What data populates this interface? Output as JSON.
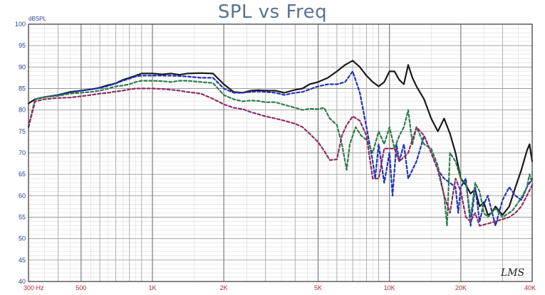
{
  "chart_data": {
    "type": "line",
    "title": "SPL vs Freq",
    "ylabel": "dBSPL",
    "xscale": "log",
    "xlim": [
      300,
      40000
    ],
    "ylim": [
      40,
      100
    ],
    "grid": true,
    "y_ticks": [
      "100",
      "95",
      "90",
      "85",
      "80",
      "75",
      "70",
      "65",
      "60",
      "55",
      "50",
      "45",
      "40"
    ],
    "x_tick_labels": [
      {
        "value": 300,
        "label": "300 Hz"
      },
      {
        "value": 500,
        "label": "500"
      },
      {
        "value": 1000,
        "label": "1K"
      },
      {
        "value": 2000,
        "label": "2K"
      },
      {
        "value": 5000,
        "label": "5K"
      },
      {
        "value": 10000,
        "label": "10K"
      },
      {
        "value": 20000,
        "label": "20K"
      },
      {
        "value": 40000,
        "label": "40K"
      }
    ],
    "logo_text": "LMS",
    "series": [
      {
        "color": "#1a1a1a",
        "dash": "solid",
        "points": [
          [
            300,
            81.5
          ],
          [
            320,
            82.5
          ],
          [
            350,
            83
          ],
          [
            400,
            83.5
          ],
          [
            450,
            84.2
          ],
          [
            500,
            84.5
          ],
          [
            550,
            84.8
          ],
          [
            600,
            85.2
          ],
          [
            650,
            85.8
          ],
          [
            700,
            86.2
          ],
          [
            750,
            87
          ],
          [
            800,
            87.5
          ],
          [
            850,
            88
          ],
          [
            900,
            88.5
          ],
          [
            1000,
            88.5
          ],
          [
            1100,
            88.3
          ],
          [
            1200,
            88.5
          ],
          [
            1300,
            88.2
          ],
          [
            1400,
            88.5
          ],
          [
            1600,
            88.6
          ],
          [
            1800,
            88.5
          ],
          [
            2000,
            86
          ],
          [
            2200,
            84.2
          ],
          [
            2400,
            84
          ],
          [
            2600,
            84.5
          ],
          [
            2800,
            84.6
          ],
          [
            3000,
            84.5
          ],
          [
            3300,
            84.5
          ],
          [
            3600,
            84
          ],
          [
            4000,
            84.7
          ],
          [
            4300,
            85
          ],
          [
            4600,
            86
          ],
          [
            5000,
            86.5
          ],
          [
            5500,
            87.5
          ],
          [
            6000,
            89
          ],
          [
            6500,
            90.5
          ],
          [
            7000,
            91.5
          ],
          [
            7500,
            90
          ],
          [
            8000,
            88
          ],
          [
            8500,
            86.5
          ],
          [
            9000,
            85.5
          ],
          [
            9500,
            86.5
          ],
          [
            10000,
            89
          ],
          [
            10500,
            89
          ],
          [
            11000,
            87
          ],
          [
            11500,
            86
          ],
          [
            12000,
            90.5
          ],
          [
            12500,
            87.5
          ],
          [
            13000,
            85.5
          ],
          [
            14000,
            82.5
          ],
          [
            15000,
            78
          ],
          [
            16000,
            75
          ],
          [
            17000,
            78
          ],
          [
            18000,
            74.5
          ],
          [
            19000,
            70
          ],
          [
            20000,
            64
          ],
          [
            21000,
            62.5
          ],
          [
            22000,
            60.5
          ],
          [
            23000,
            61.5
          ],
          [
            24000,
            57.5
          ],
          [
            25000,
            58.5
          ],
          [
            26000,
            55.5
          ],
          [
            27000,
            56
          ],
          [
            28000,
            57.5
          ],
          [
            29000,
            56.5
          ],
          [
            30000,
            55.5
          ],
          [
            32000,
            57.5
          ],
          [
            34000,
            62
          ],
          [
            36000,
            66
          ],
          [
            38000,
            70.5
          ],
          [
            39000,
            72
          ],
          [
            40000,
            68
          ]
        ]
      },
      {
        "color": "#1f33b8",
        "dash": "dash",
        "points": [
          [
            300,
            76
          ],
          [
            320,
            82.5
          ],
          [
            350,
            83
          ],
          [
            400,
            83.5
          ],
          [
            450,
            84
          ],
          [
            500,
            84.5
          ],
          [
            550,
            84.8
          ],
          [
            600,
            85.1
          ],
          [
            650,
            85.6
          ],
          [
            700,
            86.2
          ],
          [
            750,
            86.8
          ],
          [
            800,
            87.3
          ],
          [
            850,
            87.8
          ],
          [
            900,
            88
          ],
          [
            1000,
            88
          ],
          [
            1100,
            88
          ],
          [
            1200,
            88
          ],
          [
            1300,
            87.9
          ],
          [
            1400,
            87.8
          ],
          [
            1600,
            87.5
          ],
          [
            1800,
            87.5
          ],
          [
            2000,
            85
          ],
          [
            2200,
            84
          ],
          [
            2400,
            84
          ],
          [
            2600,
            84.2
          ],
          [
            2800,
            84.3
          ],
          [
            3000,
            84.2
          ],
          [
            3300,
            84
          ],
          [
            3600,
            83.5
          ],
          [
            4000,
            84
          ],
          [
            4300,
            84.2
          ],
          [
            4600,
            84.8
          ],
          [
            5000,
            85.5
          ],
          [
            5500,
            86
          ],
          [
            6000,
            86
          ],
          [
            6500,
            86.5
          ],
          [
            7000,
            89
          ],
          [
            7500,
            84
          ],
          [
            8000,
            76
          ],
          [
            8500,
            68
          ],
          [
            8700,
            64
          ],
          [
            9000,
            72
          ],
          [
            9500,
            63
          ],
          [
            10000,
            70
          ],
          [
            10300,
            60
          ],
          [
            10700,
            72
          ],
          [
            11000,
            68
          ],
          [
            11500,
            72
          ],
          [
            12000,
            64
          ],
          [
            13000,
            68
          ],
          [
            14000,
            74
          ],
          [
            15000,
            70
          ],
          [
            16000,
            66
          ],
          [
            17000,
            64
          ],
          [
            18000,
            63
          ],
          [
            19000,
            62
          ],
          [
            19500,
            56
          ],
          [
            20000,
            62
          ],
          [
            21000,
            64
          ],
          [
            22000,
            53
          ],
          [
            23000,
            62
          ],
          [
            24000,
            54
          ],
          [
            25000,
            58
          ],
          [
            26000,
            60
          ],
          [
            28000,
            53
          ],
          [
            30000,
            59
          ],
          [
            32000,
            62
          ],
          [
            34000,
            60
          ],
          [
            36000,
            59
          ],
          [
            38000,
            62
          ],
          [
            40000,
            64
          ]
        ]
      },
      {
        "color": "#2e7d4a",
        "dash": "dash",
        "points": [
          [
            300,
            76
          ],
          [
            320,
            82.5
          ],
          [
            350,
            83
          ],
          [
            400,
            83.3
          ],
          [
            450,
            83.8
          ],
          [
            500,
            84
          ],
          [
            550,
            84.2
          ],
          [
            600,
            84.5
          ],
          [
            650,
            85
          ],
          [
            700,
            85.5
          ],
          [
            750,
            85.7
          ],
          [
            800,
            86
          ],
          [
            850,
            86.5
          ],
          [
            900,
            86.8
          ],
          [
            1000,
            86.8
          ],
          [
            1100,
            86.7
          ],
          [
            1200,
            86.5
          ],
          [
            1300,
            86.8
          ],
          [
            1400,
            86.8
          ],
          [
            1600,
            86.5
          ],
          [
            1800,
            86.3
          ],
          [
            2000,
            83.5
          ],
          [
            2200,
            82.5
          ],
          [
            2400,
            82
          ],
          [
            2600,
            82.2
          ],
          [
            2800,
            82.1
          ],
          [
            3000,
            81.8
          ],
          [
            3300,
            81.8
          ],
          [
            3600,
            81.2
          ],
          [
            4000,
            80.5
          ],
          [
            4300,
            80
          ],
          [
            4600,
            80.3
          ],
          [
            5000,
            80.2
          ],
          [
            5300,
            80.5
          ],
          [
            5600,
            78
          ],
          [
            6000,
            76.5
          ],
          [
            6300,
            72
          ],
          [
            6600,
            66
          ],
          [
            6800,
            72
          ],
          [
            7200,
            76
          ],
          [
            7600,
            74
          ],
          [
            8000,
            73
          ],
          [
            8500,
            70
          ],
          [
            9000,
            75
          ],
          [
            9500,
            72
          ],
          [
            10000,
            76
          ],
          [
            10500,
            71
          ],
          [
            11000,
            74
          ],
          [
            11500,
            76
          ],
          [
            12000,
            80
          ],
          [
            12500,
            72
          ],
          [
            13000,
            76
          ],
          [
            14000,
            72
          ],
          [
            15000,
            71
          ],
          [
            16000,
            67
          ],
          [
            17000,
            60
          ],
          [
            17500,
            53
          ],
          [
            18000,
            70
          ],
          [
            19000,
            68
          ],
          [
            20000,
            64
          ],
          [
            21000,
            63
          ],
          [
            22000,
            55
          ],
          [
            23000,
            63
          ],
          [
            24000,
            61
          ],
          [
            25000,
            56
          ],
          [
            26000,
            55
          ],
          [
            28000,
            57
          ],
          [
            30000,
            55
          ],
          [
            33000,
            56.5
          ],
          [
            36000,
            59.5
          ],
          [
            38000,
            62
          ],
          [
            39000,
            65
          ],
          [
            40000,
            63
          ]
        ]
      },
      {
        "color": "#8f2d63",
        "dash": "dash",
        "points": [
          [
            300,
            76
          ],
          [
            320,
            82
          ],
          [
            350,
            82.5
          ],
          [
            400,
            82.8
          ],
          [
            450,
            82.9
          ],
          [
            500,
            83.2
          ],
          [
            550,
            83.5
          ],
          [
            600,
            83.8
          ],
          [
            650,
            84
          ],
          [
            700,
            84.3
          ],
          [
            750,
            84.5
          ],
          [
            800,
            84.8
          ],
          [
            850,
            85
          ],
          [
            900,
            85
          ],
          [
            1000,
            85
          ],
          [
            1100,
            84.9
          ],
          [
            1200,
            84.7
          ],
          [
            1300,
            84.5
          ],
          [
            1400,
            84.2
          ],
          [
            1600,
            83.8
          ],
          [
            1800,
            82.6
          ],
          [
            2000,
            81.3
          ],
          [
            2200,
            80.5
          ],
          [
            2400,
            80.2
          ],
          [
            2600,
            79.5
          ],
          [
            2800,
            79
          ],
          [
            3000,
            78.5
          ],
          [
            3300,
            78
          ],
          [
            3600,
            77.5
          ],
          [
            4000,
            76.8
          ],
          [
            4300,
            76
          ],
          [
            4600,
            74.5
          ],
          [
            5000,
            72.5
          ],
          [
            5300,
            70.5
          ],
          [
            5600,
            68.3
          ],
          [
            6000,
            68.5
          ],
          [
            6300,
            74
          ],
          [
            6600,
            76.5
          ],
          [
            7000,
            78.5
          ],
          [
            7500,
            77.5
          ],
          [
            8000,
            74
          ],
          [
            8500,
            64
          ],
          [
            9000,
            64
          ],
          [
            9500,
            71
          ],
          [
            10000,
            71
          ],
          [
            10500,
            71
          ],
          [
            11000,
            68
          ],
          [
            12000,
            70
          ],
          [
            13000,
            76
          ],
          [
            14000,
            74
          ],
          [
            15000,
            70
          ],
          [
            16000,
            66
          ],
          [
            17000,
            60
          ],
          [
            18000,
            56
          ],
          [
            19000,
            64
          ],
          [
            20000,
            61
          ],
          [
            21000,
            55
          ],
          [
            22000,
            54
          ],
          [
            23000,
            56
          ],
          [
            24000,
            53
          ],
          [
            26000,
            53.5
          ],
          [
            28000,
            54
          ],
          [
            30000,
            54.5
          ],
          [
            32000,
            55
          ],
          [
            34000,
            56
          ],
          [
            36000,
            57.5
          ],
          [
            38000,
            60
          ],
          [
            40000,
            62.5
          ]
        ]
      }
    ]
  }
}
